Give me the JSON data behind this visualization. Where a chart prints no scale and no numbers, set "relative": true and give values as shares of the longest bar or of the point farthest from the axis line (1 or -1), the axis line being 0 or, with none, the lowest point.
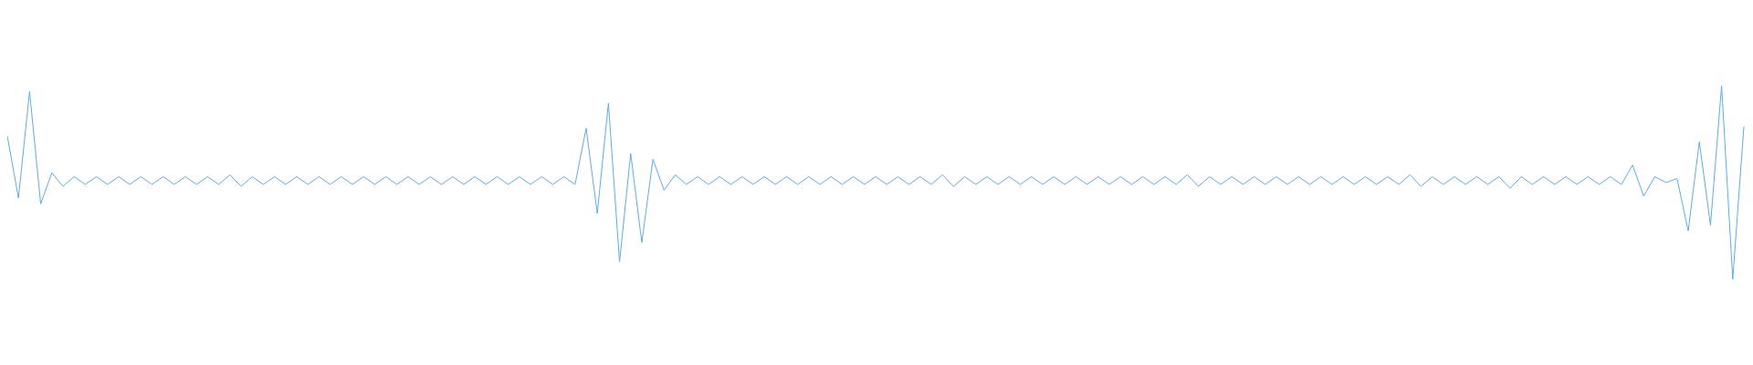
{
  "chart_data": {
    "type": "line",
    "relative": true,
    "categories": [
      null,
      null,
      null,
      null,
      null,
      null,
      null,
      null,
      null,
      null,
      null,
      null,
      null,
      null,
      null,
      null,
      null,
      null,
      null,
      null,
      null,
      null,
      null,
      null,
      null,
      null,
      null,
      null,
      null,
      null,
      null,
      null,
      null,
      null,
      null,
      null,
      null,
      null,
      null,
      null,
      null,
      null,
      null,
      null,
      null,
      null,
      null,
      null,
      null,
      null,
      null,
      null,
      null,
      null,
      null,
      null,
      null,
      null,
      null,
      null,
      null,
      null,
      null,
      null,
      null,
      null,
      null,
      null,
      null,
      null,
      null,
      null,
      null,
      null,
      null,
      null,
      null,
      null,
      null,
      null,
      null,
      null,
      null,
      null,
      null,
      null,
      null,
      null,
      null,
      null,
      null,
      null,
      null,
      null,
      null,
      null,
      null,
      null,
      null,
      null,
      null,
      null,
      null,
      null,
      null,
      null,
      null,
      null,
      null,
      null,
      null,
      null,
      null,
      null,
      null,
      null,
      null,
      null,
      null,
      null,
      null,
      null,
      null,
      null,
      null,
      null,
      null,
      null,
      null,
      null,
      null,
      null,
      null,
      null,
      null,
      null,
      null,
      null,
      null,
      null,
      null,
      null,
      null,
      null,
      null,
      null,
      null,
      null,
      null,
      null,
      null,
      null,
      null,
      null,
      null,
      null,
      null
    ],
    "series": [
      {
        "color": "#5dade2",
        "values": [
          0.74,
          0.42,
          0.97,
          0.39,
          0.55,
          0.48,
          0.53,
          0.49,
          0.53,
          0.49,
          0.53,
          0.49,
          0.53,
          0.49,
          0.53,
          0.49,
          0.53,
          0.49,
          0.53,
          0.49,
          0.54,
          0.48,
          0.53,
          0.49,
          0.53,
          0.49,
          0.53,
          0.49,
          0.53,
          0.49,
          0.53,
          0.49,
          0.53,
          0.49,
          0.53,
          0.49,
          0.53,
          0.49,
          0.53,
          0.49,
          0.53,
          0.49,
          0.53,
          0.49,
          0.53,
          0.49,
          0.53,
          0.49,
          0.53,
          0.49,
          0.53,
          0.49,
          0.78,
          0.34,
          0.91,
          0.09,
          0.65,
          0.19,
          0.62,
          0.46,
          0.54,
          0.49,
          0.53,
          0.49,
          0.53,
          0.49,
          0.53,
          0.49,
          0.53,
          0.49,
          0.53,
          0.49,
          0.53,
          0.49,
          0.53,
          0.49,
          0.53,
          0.49,
          0.53,
          0.49,
          0.53,
          0.49,
          0.53,
          0.49,
          0.54,
          0.48,
          0.53,
          0.49,
          0.53,
          0.49,
          0.53,
          0.49,
          0.53,
          0.49,
          0.53,
          0.49,
          0.53,
          0.49,
          0.53,
          0.49,
          0.53,
          0.49,
          0.53,
          0.49,
          0.53,
          0.49,
          0.54,
          0.48,
          0.53,
          0.49,
          0.53,
          0.49,
          0.53,
          0.49,
          0.53,
          0.49,
          0.53,
          0.49,
          0.53,
          0.49,
          0.53,
          0.49,
          0.53,
          0.49,
          0.53,
          0.49,
          0.54,
          0.48,
          0.53,
          0.49,
          0.53,
          0.49,
          0.53,
          0.49,
          0.53,
          0.47,
          0.53,
          0.49,
          0.53,
          0.49,
          0.53,
          0.49,
          0.53,
          0.49,
          0.53,
          0.49,
          0.59,
          0.43,
          0.53,
          0.5,
          0.52,
          0.25,
          0.71,
          0.28,
          1,
          0,
          0.79
        ]
      }
    ]
  }
}
